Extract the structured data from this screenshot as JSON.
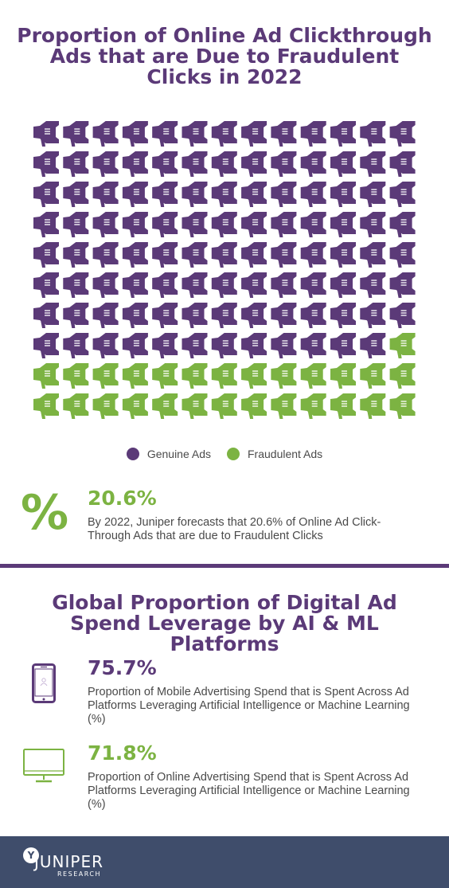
{
  "colors": {
    "genuine": "#5b3a78",
    "fraudulent": "#7cb342",
    "footer": "#3f4d6b"
  },
  "section1": {
    "title": "Proportion of Online Ad Clickthrough Ads that are Due to Fraudulent Clicks in 2022",
    "legend": [
      {
        "label": "Genuine Ads",
        "color": "#5b3a78"
      },
      {
        "label": "Fraudulent Ads",
        "color": "#7cb342"
      }
    ],
    "stat": {
      "icon": "percent-icon",
      "symbol": "%",
      "value": "20.6%",
      "description": "By 2022, Juniper forecasts that 20.6% of Online Ad Click-Through Ads that are due to Fraudulent Clicks"
    }
  },
  "section2": {
    "title": "Global Proportion of Digital Ad Spend Leverage by AI & ML Platforms",
    "stats": [
      {
        "icon": "mobile-phone-icon",
        "value": "75.7%",
        "color": "#5b3a78",
        "description": "Proportion of Mobile Advertising Spend that is Spent Across Ad Platforms Leveraging Artificial Intelligence or Machine Learning (%)"
      },
      {
        "icon": "monitor-icon",
        "value": "71.8%",
        "color": "#7cb342",
        "description": "Proportion of Online Advertising Spend that is Spent Across Ad Platforms Leveraging Artificial Intelligence or Machine Learning (%)"
      }
    ]
  },
  "footer": {
    "logo_name": "JUNIPER",
    "logo_sub": "RESEARCH",
    "logo_mark": "Y"
  },
  "chart_data": {
    "type": "pictogram",
    "title": "Proportion of Online Ad Clickthrough Ads that are Due to Fraudulent Clicks in 2022",
    "rows": 10,
    "columns": 13,
    "total_icons": 130,
    "icon": "megaphone-icon",
    "series": [
      {
        "name": "Genuine Ads",
        "count": 103,
        "color": "#5b3a78"
      },
      {
        "name": "Fraudulent Ads",
        "count": 27,
        "color": "#7cb342"
      }
    ],
    "legend_position": "bottom"
  }
}
